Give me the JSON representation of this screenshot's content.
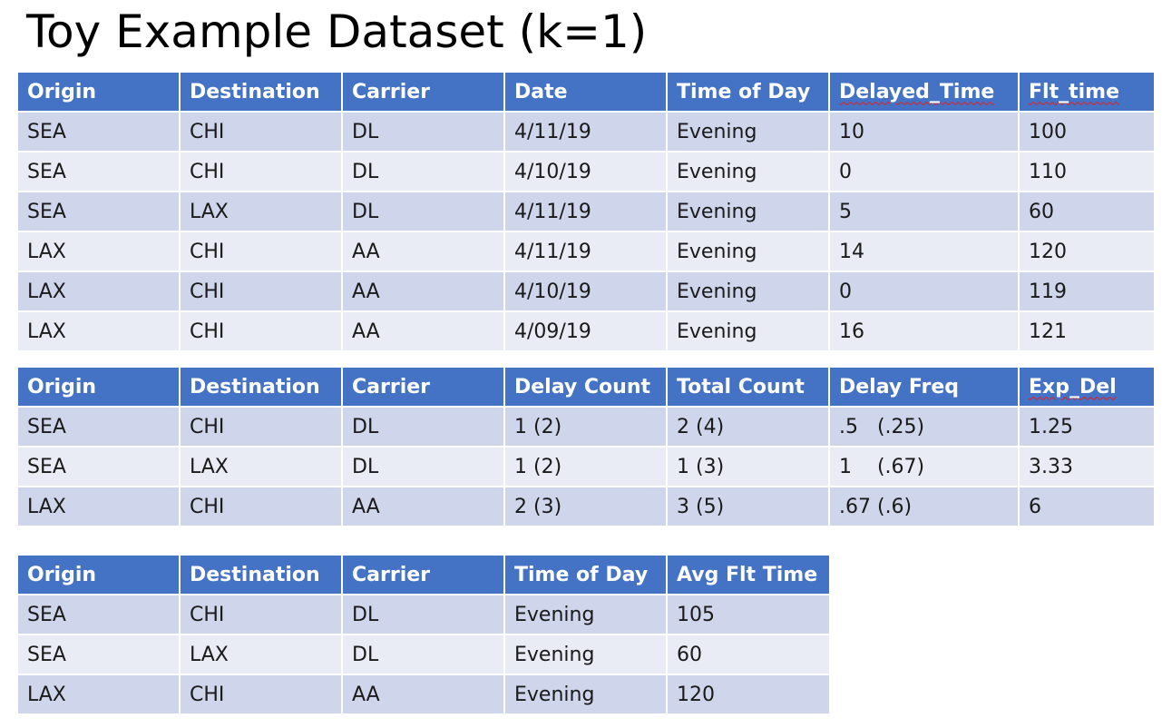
{
  "title": "Toy Example Dataset (k=1)",
  "tables": {
    "flights": {
      "headers": [
        "Origin",
        "Destination",
        "Carrier",
        "Date",
        "Time of Day",
        "Delayed_Time",
        "Flt_time"
      ],
      "rows": [
        [
          "SEA",
          "CHI",
          "DL",
          "4/11/19",
          "Evening",
          "10",
          "100"
        ],
        [
          "SEA",
          "CHI",
          "DL",
          "4/10/19",
          "Evening",
          "0",
          "110"
        ],
        [
          "SEA",
          "LAX",
          "DL",
          "4/11/19",
          "Evening",
          "5",
          "60"
        ],
        [
          "LAX",
          "CHI",
          "AA",
          "4/11/19",
          "Evening",
          "14",
          "120"
        ],
        [
          "LAX",
          "CHI",
          "AA",
          "4/10/19",
          "Evening",
          "0",
          "119"
        ],
        [
          "LAX",
          "CHI",
          "AA",
          "4/09/19",
          "Evening",
          "16",
          "121"
        ]
      ]
    },
    "delay": {
      "headers": [
        "Origin",
        "Destination",
        "Carrier",
        "Delay Count",
        "Total Count",
        "Delay Freq",
        "Exp_Del"
      ],
      "rows": [
        [
          "SEA",
          "CHI",
          "DL",
          "1 (2)",
          "2 (4)",
          ".5   (.25)",
          "1.25"
        ],
        [
          "SEA",
          "LAX",
          "DL",
          "1 (2)",
          "1 (3)",
          "1    (.67)",
          "3.33"
        ],
        [
          "LAX",
          "CHI",
          "AA",
          "2 (3)",
          "3 (5)",
          ".67 (.6)",
          "6"
        ]
      ]
    },
    "avg_flight_time": {
      "headers": [
        "Origin",
        "Destination",
        "Carrier",
        "Time of Day",
        "Avg Flt Time"
      ],
      "rows": [
        [
          "SEA",
          "CHI",
          "DL",
          "Evening",
          "105"
        ],
        [
          "SEA",
          "LAX",
          "DL",
          "Evening",
          "60"
        ],
        [
          "LAX",
          "CHI",
          "AA",
          "Evening",
          "120"
        ]
      ]
    }
  },
  "colors": {
    "header_bg": "#4472c4",
    "header_text": "#ffffff",
    "row_band_dark": "#cfd5ea",
    "row_band_light": "#e9ebf5",
    "spellcheck_underline": "#e02020"
  }
}
